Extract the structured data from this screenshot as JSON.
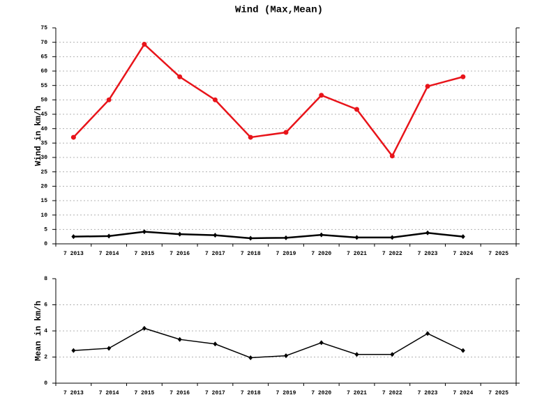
{
  "chart_data": [
    {
      "type": "line",
      "title": "Wind (Max,Mean)",
      "ylabel": "Wind in km/h",
      "categories": [
        "7 2013",
        "7 2014",
        "7 2015",
        "7 2016",
        "7 2017",
        "7 2018",
        "7 2019",
        "7 2020",
        "7 2021",
        "7 2022",
        "7 2023",
        "7 2024",
        "7 2025"
      ],
      "series": [
        {
          "color": "#e8141a",
          "marker": "circle",
          "values": [
            37,
            50,
            69.3,
            58,
            50,
            37,
            38.7,
            51.6,
            46.7,
            30.5,
            54.7,
            58,
            null
          ]
        },
        {
          "color": "#000000",
          "marker": "diamond",
          "values": [
            2.5,
            2.7,
            4.2,
            3.35,
            3.0,
            1.95,
            2.1,
            3.1,
            2.2,
            2.2,
            3.8,
            2.5,
            null
          ]
        }
      ],
      "ylim": [
        0,
        75
      ],
      "yticks": [
        0,
        5,
        10,
        15,
        20,
        25,
        30,
        35,
        40,
        45,
        50,
        55,
        60,
        65,
        70,
        75
      ],
      "grid": true
    },
    {
      "type": "line",
      "ylabel": "Mean in km/h",
      "categories": [
        "7 2013",
        "7 2014",
        "7 2015",
        "7 2016",
        "7 2017",
        "7 2018",
        "7 2019",
        "7 2020",
        "7 2021",
        "7 2022",
        "7 2023",
        "7 2024",
        "7 2025"
      ],
      "series": [
        {
          "color": "#000000",
          "marker": "diamond",
          "values": [
            2.5,
            2.67,
            4.2,
            3.35,
            3.0,
            1.95,
            2.1,
            3.1,
            2.2,
            2.2,
            3.8,
            2.5,
            null
          ]
        }
      ],
      "ylim": [
        0,
        8
      ],
      "yticks": [
        0,
        2,
        4,
        6,
        8
      ],
      "grid": true
    }
  ]
}
